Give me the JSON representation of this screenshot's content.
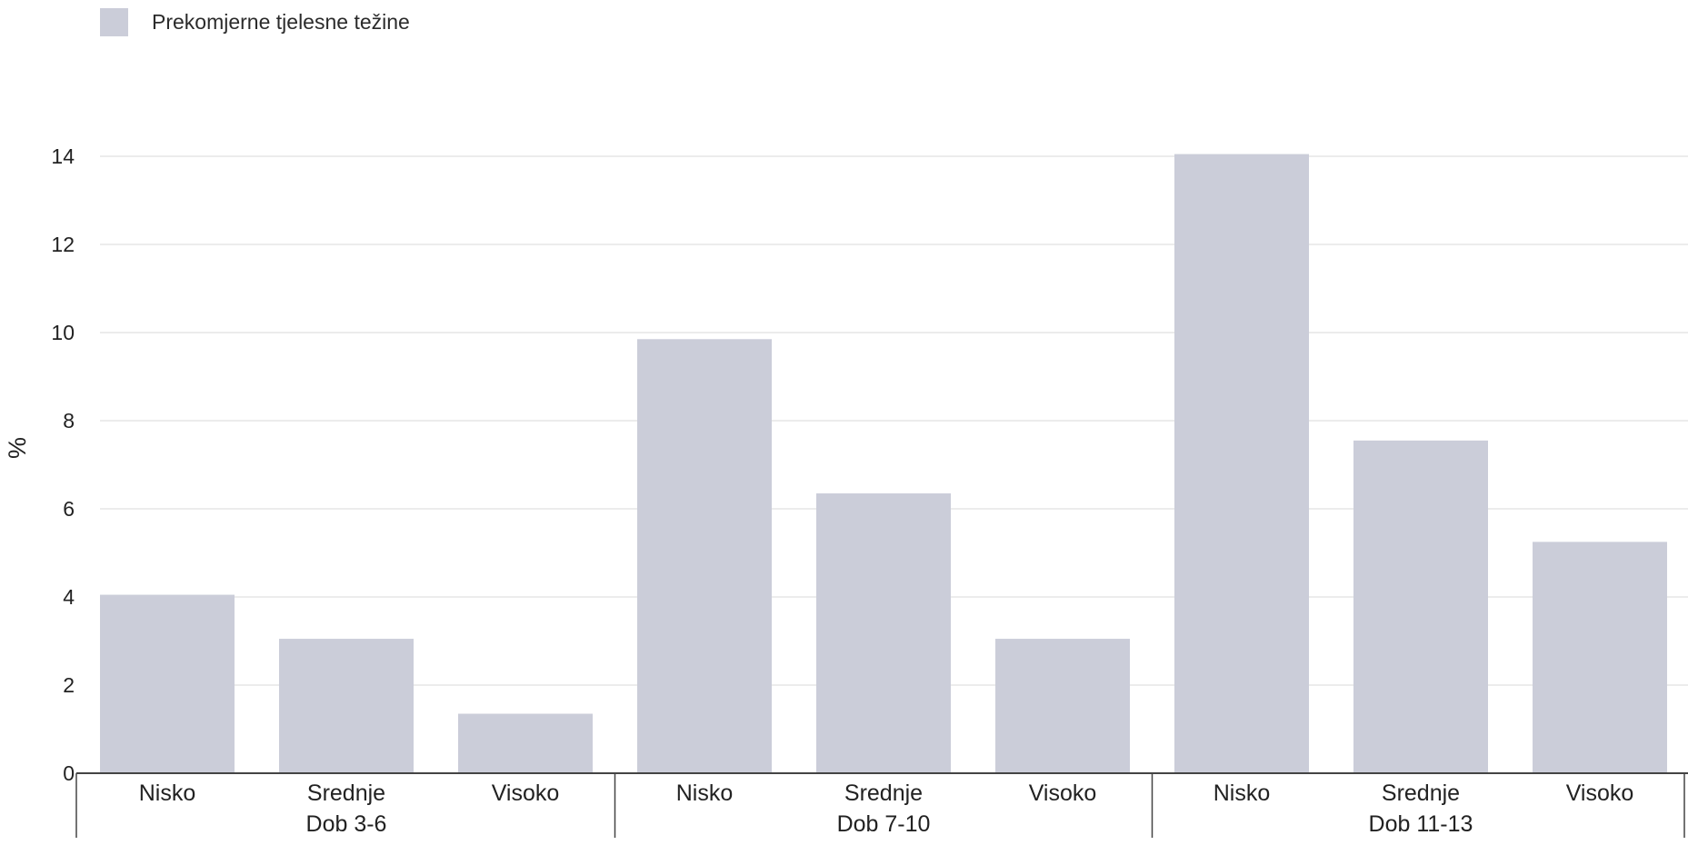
{
  "chart_data": {
    "type": "bar",
    "ylabel": "%",
    "ylim": [
      0,
      14
    ],
    "yticks": [
      0,
      2,
      4,
      6,
      8,
      10,
      12,
      14
    ],
    "grid": true,
    "legend_position": "top-left",
    "series": [
      {
        "name": "Prekomjerne tjelesne težine",
        "color": "#cbcdd9",
        "values": [
          4.05,
          3.05,
          1.35,
          9.85,
          6.35,
          3.05,
          14.05,
          7.55,
          5.25
        ]
      }
    ],
    "categories": [
      "Nisko",
      "Srednje",
      "Visoko",
      "Nisko",
      "Srednje",
      "Visoko",
      "Nisko",
      "Srednje",
      "Visoko"
    ],
    "groups": [
      {
        "label": "Dob 3-6",
        "count": 3
      },
      {
        "label": "Dob 7-10",
        "count": 3
      },
      {
        "label": "Dob 11-13",
        "count": 3
      }
    ]
  }
}
